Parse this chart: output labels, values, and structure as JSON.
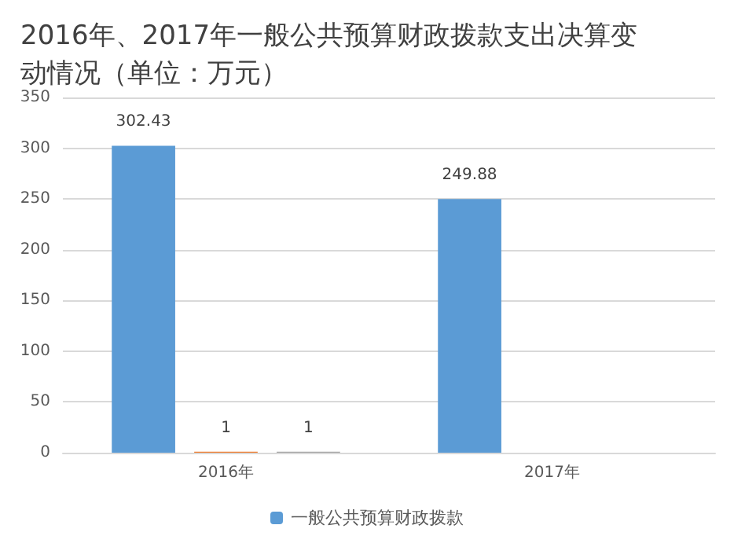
{
  "chart_data": {
    "type": "bar",
    "title": "2016年、2017年一般公共预算财政拨款支出决算变动情况（单位：万元）",
    "categories": [
      "2016年",
      "2017年"
    ],
    "series": [
      {
        "name": "一般公共预算财政拨款",
        "color": "#5b9bd5",
        "values": [
          302.43,
          249.88
        ]
      },
      {
        "color": "#ed7d31",
        "values": [
          1,
          null
        ]
      },
      {
        "color": "#a5a5a5",
        "values": [
          1,
          null
        ]
      }
    ],
    "ylim": [
      0,
      350
    ],
    "yticks": [
      0,
      50,
      100,
      150,
      200,
      250,
      300,
      350
    ],
    "grid": "y",
    "legend": "bottom",
    "data_labels": true
  }
}
